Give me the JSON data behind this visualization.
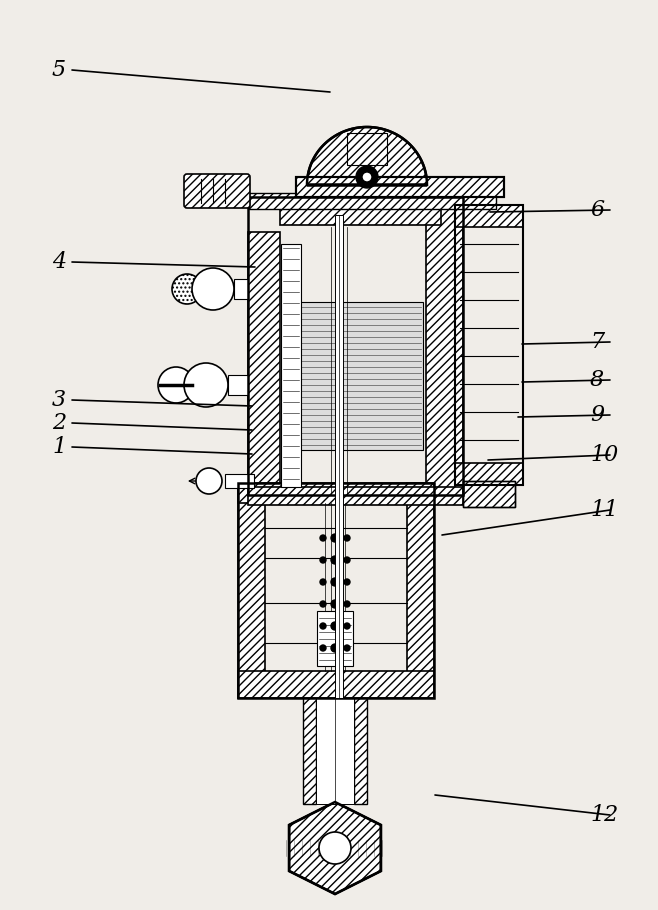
{
  "bg_color": "#f0ede8",
  "line_color": "#000000",
  "labels_data": [
    [
      "5",
      52,
      840,
      330,
      818
    ],
    [
      "6",
      590,
      700,
      490,
      698
    ],
    [
      "4",
      52,
      648,
      255,
      643
    ],
    [
      "7",
      590,
      568,
      522,
      566
    ],
    [
      "8",
      590,
      530,
      522,
      528
    ],
    [
      "9",
      590,
      495,
      518,
      493
    ],
    [
      "10",
      590,
      455,
      488,
      450
    ],
    [
      "3",
      52,
      510,
      252,
      504
    ],
    [
      "2",
      52,
      487,
      252,
      480
    ],
    [
      "1",
      52,
      463,
      252,
      456
    ],
    [
      "11",
      590,
      400,
      442,
      375
    ],
    [
      "12",
      590,
      95,
      435,
      115
    ]
  ],
  "label_fontsize": 16
}
